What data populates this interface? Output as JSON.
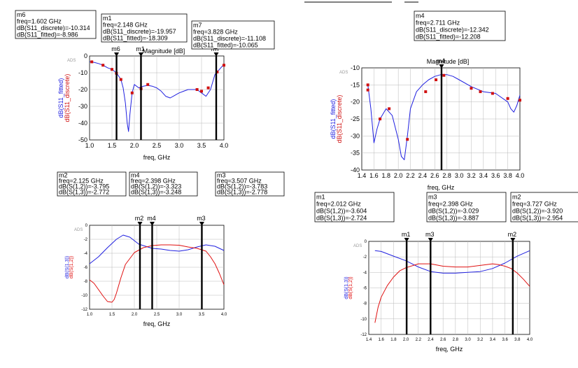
{
  "colors": {
    "fitted": "#2020e0",
    "discrete": "#d01010",
    "s12": "#2020e0",
    "s13": "#e01010",
    "grid": "#b8b8b8"
  },
  "chart_data": [
    {
      "id": "c1",
      "type": "line",
      "watermark": "ADS",
      "title": "Magnitude [dB]",
      "xlabel": "freq, GHz",
      "ylabel_lines": [
        {
          "text": "dB(S11_fitted)",
          "color": "#2020e0"
        },
        {
          "text": "dB(S11_discrete)",
          "color": "#d01010"
        }
      ],
      "xlim": [
        1.0,
        4.0
      ],
      "ylim": [
        -50,
        0
      ],
      "xticks": [
        "1.0",
        "1.5",
        "2.0",
        "2.5",
        "3.0",
        "3.5",
        "4.0"
      ],
      "yticks": [
        "0",
        "-10",
        "-20",
        "-30",
        "-40",
        "-50"
      ],
      "series": [
        {
          "role": "fitted",
          "style": "line",
          "x": [
            1.0,
            1.1,
            1.2,
            1.3,
            1.4,
            1.5,
            1.6,
            1.7,
            1.75,
            1.8,
            1.84,
            1.87,
            1.9,
            1.95,
            2.0,
            2.1,
            2.2,
            2.3,
            2.4,
            2.5,
            2.6,
            2.7,
            2.8,
            2.9,
            3.0,
            3.1,
            3.2,
            3.3,
            3.4,
            3.5,
            3.6,
            3.7,
            3.8,
            3.85,
            3.9,
            3.95,
            4.0
          ],
          "y": [
            -3.5,
            -3.8,
            -4.5,
            -5.5,
            -7,
            -8,
            -10,
            -14,
            -19,
            -28,
            -40,
            -45,
            -35,
            -22,
            -17,
            -19,
            -18,
            -17.5,
            -18,
            -19,
            -21,
            -24,
            -25,
            -23.5,
            -22,
            -21,
            -20,
            -20,
            -20,
            -22,
            -24,
            -20,
            -11,
            -9.5,
            -8,
            -6.5,
            -5
          ]
        },
        {
          "role": "discrete",
          "style": "markers",
          "x": [
            1.05,
            1.3,
            1.5,
            1.6,
            1.7,
            1.95,
            2.15,
            2.3,
            3.4,
            3.5,
            3.65,
            3.85,
            4.0
          ],
          "y": [
            -3.5,
            -5.5,
            -8,
            -10.3,
            -14,
            -22,
            -19.5,
            -17,
            -20,
            -21,
            -19,
            -9.5,
            -5.5
          ]
        }
      ],
      "markers": [
        {
          "name": "m6",
          "x": 1.602,
          "lines": [
            "m6",
            "freq=1.602 GHz",
            "dB(S11_discrete)=-10.314",
            "dB(S11_fitted)=-8.986"
          ]
        },
        {
          "name": "m1",
          "x": 2.148,
          "lines": [
            "m1",
            "freq=2.148 GHz",
            "dB(S11_discrete)=-19.957",
            "dB(S11_fitted)=-18.309"
          ]
        },
        {
          "name": "m7",
          "x": 3.828,
          "lines": [
            "m7",
            "freq=3.828 GHz",
            "dB(S11_discrete)=-11.108",
            "dB(S11_fitted)=-10.065"
          ]
        }
      ]
    },
    {
      "id": "c2",
      "type": "line",
      "watermark": "ADS",
      "title": "Magnitude [dB]",
      "xlabel": "freq, GHz",
      "ylabel_lines": [
        {
          "text": "dB(S11_fitted)",
          "color": "#2020e0"
        },
        {
          "text": "dB(S11_discrete)",
          "color": "#d01010"
        }
      ],
      "xlim": [
        1.4,
        4.0
      ],
      "ylim": [
        -40,
        -10
      ],
      "xticks": [
        "1.4",
        "1.6",
        "1.8",
        "2.0",
        "2.2",
        "2.4",
        "2.6",
        "2.8",
        "3.0",
        "3.2",
        "3.4",
        "3.6",
        "3.8",
        "4.0"
      ],
      "yticks": [
        "-10",
        "-15",
        "-20",
        "-25",
        "-30",
        "-35",
        "-40"
      ],
      "series": [
        {
          "role": "fitted",
          "style": "line",
          "x": [
            1.5,
            1.55,
            1.6,
            1.65,
            1.7,
            1.8,
            1.9,
            2.0,
            2.05,
            2.1,
            2.15,
            2.2,
            2.3,
            2.4,
            2.5,
            2.6,
            2.7,
            2.8,
            2.9,
            3.0,
            3.2,
            3.4,
            3.6,
            3.8,
            3.85,
            3.9,
            3.95,
            4.0
          ],
          "y": [
            -15,
            -22,
            -32,
            -28,
            -25,
            -22,
            -24,
            -31,
            -36,
            -37,
            -30,
            -22,
            -17,
            -15,
            -13.5,
            -12.5,
            -12,
            -12,
            -12.5,
            -13.5,
            -15.5,
            -17,
            -17.5,
            -20,
            -22,
            -23,
            -21,
            -18
          ]
        },
        {
          "role": "discrete",
          "style": "markers",
          "x": [
            1.5,
            1.5,
            1.7,
            1.85,
            2.15,
            2.45,
            2.62,
            2.75,
            3.2,
            3.35,
            3.55,
            3.8,
            4.0
          ],
          "y": [
            -15,
            -16.5,
            -25,
            -22,
            -31,
            -17,
            -13.5,
            -12.2,
            -16,
            -17,
            -17.5,
            -19,
            -19.5
          ]
        }
      ],
      "markers": [
        {
          "name": "m4",
          "x": 2.711,
          "lines": [
            "m4",
            "freq=2.711 GHz",
            "dB(S11_discrete)=-12.342",
            "dB(S11_fitted)=-12.208"
          ]
        }
      ]
    },
    {
      "id": "c3",
      "type": "line",
      "watermark": "ADS",
      "xlabel": "freq, GHz",
      "ylabel_lines": [
        {
          "text": "dB(S(1,3))",
          "color": "#2020e0"
        },
        {
          "text": "dB(S(1,2))",
          "color": "#e01010"
        }
      ],
      "xlim": [
        1.0,
        4.0
      ],
      "ylim": [
        -12,
        0
      ],
      "xticks": [
        "1.0",
        "1.5",
        "2.0",
        "2.5",
        "3.0",
        "3.5",
        "4.0"
      ],
      "yticks": [
        "0",
        "-2",
        "-4",
        "-6",
        "-8",
        "-10",
        "-12"
      ],
      "series": [
        {
          "role": "s12",
          "style": "line",
          "x": [
            1.0,
            1.2,
            1.4,
            1.6,
            1.75,
            1.9,
            2.1,
            2.4,
            2.6,
            2.8,
            3.0,
            3.2,
            3.4,
            3.6,
            3.8,
            4.0
          ],
          "y": [
            -5.5,
            -4.5,
            -3.2,
            -2,
            -1.4,
            -1.7,
            -2.7,
            -3.3,
            -3.4,
            -3.6,
            -3.7,
            -3.5,
            -3.1,
            -2.8,
            -3,
            -3.6
          ]
        },
        {
          "role": "s13",
          "style": "line",
          "x": [
            1.0,
            1.1,
            1.2,
            1.3,
            1.4,
            1.5,
            1.55,
            1.6,
            1.7,
            1.8,
            2.0,
            2.2,
            2.4,
            2.6,
            2.8,
            3.0,
            3.2,
            3.4,
            3.6,
            3.7,
            3.8,
            3.9,
            4.0
          ],
          "y": [
            -7.8,
            -8.3,
            -9.2,
            -10.1,
            -10.9,
            -11.0,
            -10.6,
            -9.7,
            -7.5,
            -5.6,
            -3.9,
            -3.2,
            -2.9,
            -2.8,
            -2.8,
            -2.85,
            -3.1,
            -3.3,
            -3.7,
            -4.5,
            -5.5,
            -6.9,
            -8.5
          ]
        }
      ],
      "markers": [
        {
          "name": "m2",
          "x": 2.125,
          "lines": [
            "m2",
            "freq=2.125 GHz",
            "dB(S(1,2))=-3.795",
            "dB(S(1,3))=-2.772"
          ]
        },
        {
          "name": "m4",
          "x": 2.398,
          "lines": [
            "m4",
            "freq=2.398 GHz",
            "dB(S(1,2))=-3.323",
            "dB(S(1,3))=-3.248"
          ]
        },
        {
          "name": "m3",
          "x": 3.507,
          "lines": [
            "m3",
            "freq=3.507 GHz",
            "dB(S(1,2))=-3.783",
            "dB(S(1,3))=-2.778"
          ]
        }
      ]
    },
    {
      "id": "c4",
      "type": "line",
      "watermark": "ADS",
      "xlabel": "freq, GHz",
      "ylabel_lines": [
        {
          "text": "dB(S(1,3))",
          "color": "#2020e0"
        },
        {
          "text": "dB(S(1,2))",
          "color": "#e01010"
        }
      ],
      "xlim": [
        1.4,
        4.0
      ],
      "ylim": [
        -12,
        0
      ],
      "xticks": [
        "1.4",
        "1.6",
        "1.8",
        "2.0",
        "2.2",
        "2.4",
        "2.6",
        "2.8",
        "3.0",
        "3.2",
        "3.4",
        "3.6",
        "3.8",
        "4.0"
      ],
      "yticks": [
        "0",
        "-2",
        "-4",
        "-6",
        "-8",
        "-10",
        "-12"
      ],
      "series": [
        {
          "role": "s12",
          "style": "line",
          "x": [
            1.5,
            1.6,
            1.8,
            2.0,
            2.2,
            2.4,
            2.6,
            2.8,
            3.0,
            3.2,
            3.4,
            3.6,
            3.8,
            4.0
          ],
          "y": [
            -1.2,
            -1.3,
            -1.9,
            -2.5,
            -3.3,
            -3.9,
            -4.1,
            -4.1,
            -4.0,
            -3.9,
            -3.5,
            -2.8,
            -1.9,
            -1.2
          ]
        },
        {
          "role": "s13",
          "style": "line",
          "x": [
            1.5,
            1.55,
            1.6,
            1.7,
            1.8,
            1.9,
            2.0,
            2.2,
            2.4,
            2.6,
            2.8,
            3.0,
            3.2,
            3.4,
            3.5,
            3.6,
            3.7,
            3.8,
            3.9,
            4.0
          ],
          "y": [
            -10.5,
            -8.5,
            -7.2,
            -5.7,
            -4.6,
            -3.8,
            -3.4,
            -2.9,
            -2.9,
            -3.2,
            -3.3,
            -3.3,
            -3.1,
            -2.9,
            -3.0,
            -3.2,
            -3.5,
            -4.1,
            -4.9,
            -5.8
          ]
        }
      ],
      "markers": [
        {
          "name": "m1",
          "x": 2.012,
          "lines": [
            "m1",
            "freq=2.012 GHz",
            "dB(S(1,2))=-3.604",
            "dB(S(1,3))=-2.724"
          ]
        },
        {
          "name": "m3",
          "x": 2.398,
          "lines": [
            "m3",
            "freq=2.398 GHz",
            "dB(S(1,2))=-3.029",
            "dB(S(1,3))=-3.887"
          ]
        },
        {
          "name": "m2",
          "x": 3.727,
          "lines": [
            "m2",
            "freq=3.727 GHz",
            "dB(S(1,2))=-3.920",
            "dB(S(1,3))=-2.954"
          ]
        }
      ]
    }
  ]
}
